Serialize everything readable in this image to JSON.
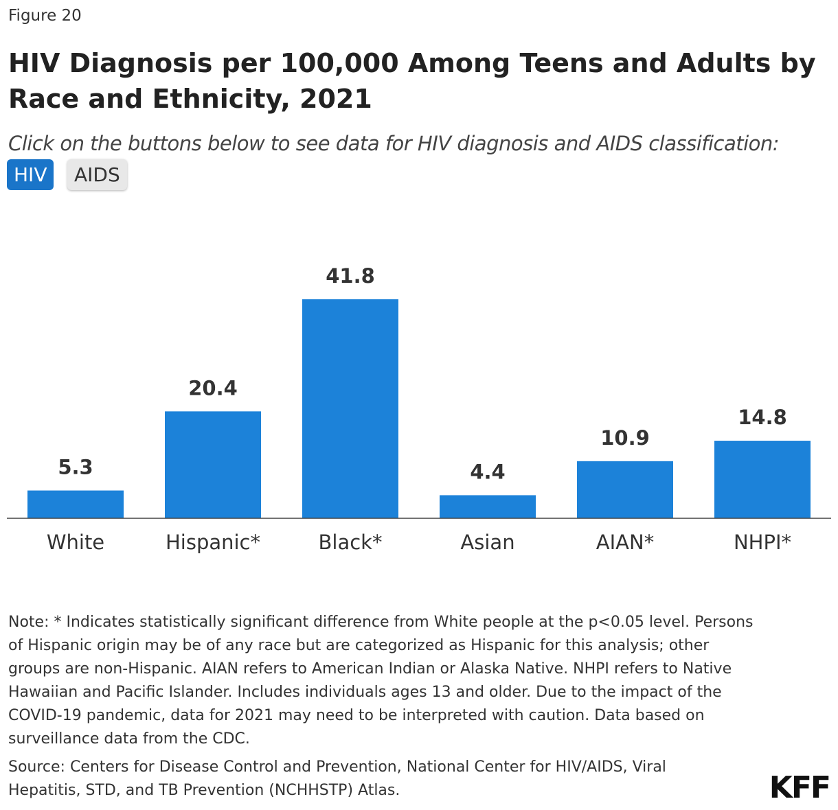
{
  "figure_label": "Figure 20",
  "subtitle": "Click on the buttons below to see data for HIV diagnosis and AIDS classification:",
  "buttons": [
    "HIV",
    "AIDS"
  ],
  "chart_data": {
    "type": "bar",
    "title": "HIV Diagnosis per 100,000 Among Teens and Adults by Race and Ethnicity, 2021",
    "categories": [
      "White",
      "Hispanic*",
      "Black*",
      "Asian",
      "AIAN*",
      "NHPI*"
    ],
    "values": [
      5.3,
      20.4,
      41.8,
      4.4,
      10.9,
      14.8
    ],
    "color": "#1c82d9"
  },
  "note": "Note: * Indicates statistically significant difference from White people at the p<0.05 level. Persons of Hispanic origin may be of any race but are categorized as Hispanic for this analysis; other groups are non-Hispanic. AIAN refers to American Indian or Alaska Native. NHPI refers to Native Hawaiian and Pacific Islander. Includes individuals ages 13 and older. Due to the impact of the COVID-19 pandemic, data for 2021 may need to be interpreted with caution. Data based on surveillance data from the CDC.",
  "source": "Source: Centers for Disease Control and Prevention, National Center for HIV/AIDS, Viral Hepatitis, STD, and TB Prevention (NCHHSTP) Atlas.",
  "logo": "KFF"
}
